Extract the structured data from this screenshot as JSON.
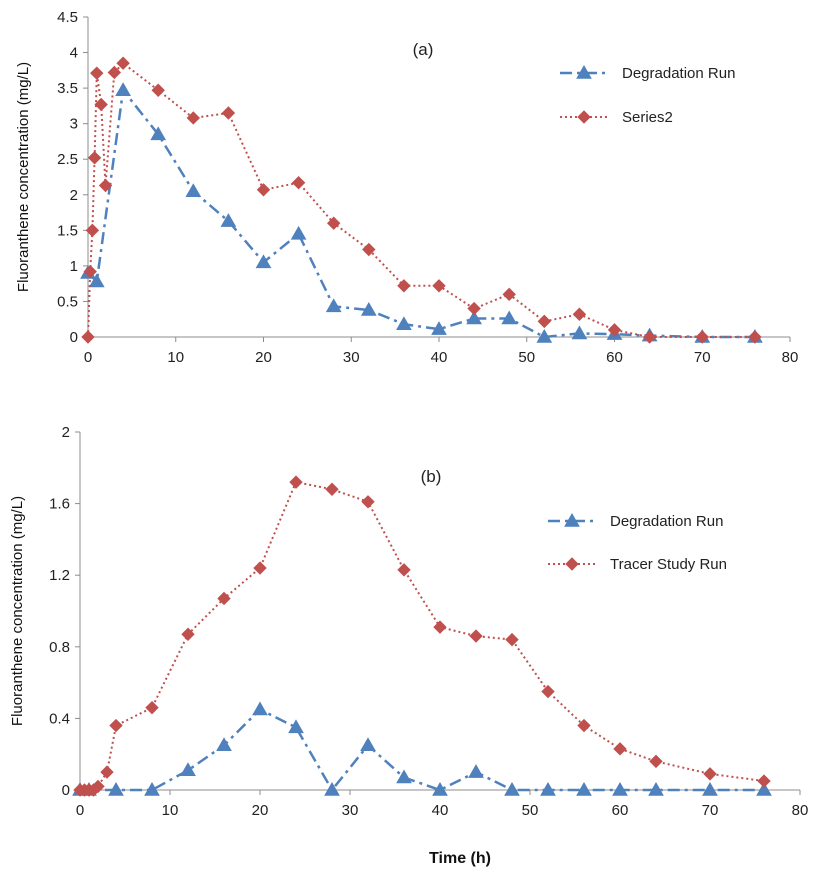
{
  "chart_data": [
    {
      "type": "line",
      "title": "(a)",
      "xlabel": "",
      "ylabel": "Fluoranthene concentration (mg/L)",
      "xlim": [
        0,
        80
      ],
      "ylim": [
        0,
        4.5
      ],
      "x_ticks": [
        "0",
        "10",
        "20",
        "30",
        "40",
        "50",
        "60",
        "70",
        "80"
      ],
      "y_ticks": [
        "0",
        "0.5",
        "1",
        "1.5",
        "2",
        "2.5",
        "3",
        "3.5",
        "4",
        "4.5"
      ],
      "grid": false,
      "legend_position": "top-right",
      "series": [
        {
          "name": "Degradation Run",
          "color": "#4F81BD",
          "marker": "triangle",
          "line_style": "dash-dot",
          "points": [
            [
              0,
              0.9
            ],
            [
              1,
              0.78
            ],
            [
              4,
              3.47
            ],
            [
              8,
              2.85
            ],
            [
              12,
              2.05
            ],
            [
              16,
              1.63
            ],
            [
              20,
              1.05
            ],
            [
              24,
              1.45
            ],
            [
              28,
              0.43
            ],
            [
              32,
              0.38
            ],
            [
              36,
              0.18
            ],
            [
              40,
              0.11
            ],
            [
              44,
              0.26
            ],
            [
              48,
              0.26
            ],
            [
              52,
              0.0
            ],
            [
              56,
              0.05
            ],
            [
              60,
              0.04
            ],
            [
              64,
              0.02
            ],
            [
              70,
              0.0
            ],
            [
              76,
              0.0
            ]
          ]
        },
        {
          "name": "Series2",
          "color": "#C0504D",
          "marker": "diamond",
          "line_style": "dotted",
          "points": [
            [
              0,
              0.0
            ],
            [
              0.25,
              0.92
            ],
            [
              0.5,
              1.5
            ],
            [
              0.75,
              2.52
            ],
            [
              1,
              3.71
            ],
            [
              1.5,
              3.27
            ],
            [
              2,
              2.13
            ],
            [
              3,
              3.72
            ],
            [
              4,
              3.85
            ],
            [
              8,
              3.47
            ],
            [
              12,
              3.08
            ],
            [
              16,
              3.15
            ],
            [
              20,
              2.07
            ],
            [
              24,
              2.17
            ],
            [
              28,
              1.6
            ],
            [
              32,
              1.23
            ],
            [
              36,
              0.72
            ],
            [
              40,
              0.72
            ],
            [
              44,
              0.4
            ],
            [
              48,
              0.6
            ],
            [
              52,
              0.22
            ],
            [
              56,
              0.32
            ],
            [
              60,
              0.1
            ],
            [
              64,
              0.0
            ],
            [
              70,
              0.0
            ],
            [
              76,
              0.0
            ]
          ]
        }
      ]
    },
    {
      "type": "line",
      "title": "(b)",
      "xlabel": "Time (h)",
      "ylabel": "Fluoranthene concentration (mg/L)",
      "xlim": [
        0,
        80
      ],
      "ylim": [
        0,
        2
      ],
      "x_ticks": [
        "0",
        "10",
        "20",
        "30",
        "40",
        "50",
        "60",
        "70",
        "80"
      ],
      "y_ticks": [
        "0",
        "0.4",
        "0.8",
        "1.2",
        "1.6",
        "2"
      ],
      "grid": false,
      "legend_position": "top-right",
      "series": [
        {
          "name": "Degradation Run",
          "color": "#4F81BD",
          "marker": "triangle",
          "line_style": "dash-dot",
          "points": [
            [
              0,
              0.0
            ],
            [
              1,
              0.0
            ],
            [
              4,
              0.0
            ],
            [
              8,
              0.0
            ],
            [
              12,
              0.11
            ],
            [
              16,
              0.25
            ],
            [
              20,
              0.45
            ],
            [
              24,
              0.35
            ],
            [
              28,
              0.0
            ],
            [
              32,
              0.25
            ],
            [
              36,
              0.07
            ],
            [
              40,
              0.0
            ],
            [
              44,
              0.1
            ],
            [
              48,
              0.0
            ],
            [
              52,
              0.0
            ],
            [
              56,
              0.0
            ],
            [
              60,
              0.0
            ],
            [
              64,
              0.0
            ],
            [
              70,
              0.0
            ],
            [
              76,
              0.0
            ]
          ]
        },
        {
          "name": "Tracer Study Run",
          "color": "#C0504D",
          "marker": "diamond",
          "line_style": "dotted",
          "points": [
            [
              0,
              0.0
            ],
            [
              0.5,
              0.0
            ],
            [
              1,
              0.0
            ],
            [
              1.5,
              0.0
            ],
            [
              2,
              0.02
            ],
            [
              3,
              0.1
            ],
            [
              4,
              0.36
            ],
            [
              8,
              0.46
            ],
            [
              12,
              0.87
            ],
            [
              16,
              1.07
            ],
            [
              20,
              1.24
            ],
            [
              24,
              1.72
            ],
            [
              28,
              1.68
            ],
            [
              32,
              1.61
            ],
            [
              36,
              1.23
            ],
            [
              40,
              0.91
            ],
            [
              44,
              0.86
            ],
            [
              48,
              0.84
            ],
            [
              52,
              0.55
            ],
            [
              56,
              0.36
            ],
            [
              60,
              0.23
            ],
            [
              64,
              0.16
            ],
            [
              70,
              0.09
            ],
            [
              76,
              0.05
            ]
          ]
        }
      ]
    }
  ]
}
